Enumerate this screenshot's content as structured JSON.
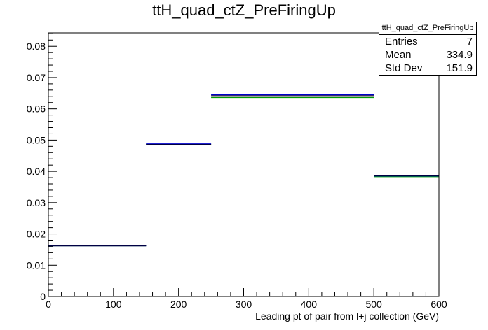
{
  "chart_data": {
    "type": "step",
    "title": "ttH_quad_ctZ_PreFiringUp",
    "xlabel": "Leading pt of pair from l+j collection (GeV)",
    "ylabel": "",
    "xlim": [
      0,
      600
    ],
    "ylim": [
      0,
      0.0843
    ],
    "x_ticks": [
      0,
      100,
      200,
      300,
      400,
      500,
      600
    ],
    "x_tick_labels": [
      "0",
      "100",
      "200",
      "300",
      "400",
      "500",
      "600"
    ],
    "y_ticks": [
      0,
      0.01,
      0.02,
      0.03,
      0.04,
      0.05,
      0.06,
      0.07,
      0.08
    ],
    "y_tick_labels": [
      "0",
      "0.01",
      "0.02",
      "0.03",
      "0.04",
      "0.05",
      "0.06",
      "0.07",
      "0.08"
    ],
    "grid": false,
    "bin_edges": [
      0,
      150,
      250,
      500,
      600
    ],
    "series": [
      {
        "color": "#000000",
        "values": [
          0.0162,
          0.0487,
          0.064,
          0.0384
        ]
      },
      {
        "color": "#00a000",
        "values": [
          0.0162,
          0.0487,
          0.0636,
          0.0383
        ]
      },
      {
        "color": "#0000cc",
        "values": [
          0.0162,
          0.0488,
          0.0645,
          0.0385
        ]
      },
      {
        "color": "#000044",
        "values": [
          0.0162,
          0.0486,
          0.0642,
          0.0386
        ]
      }
    ],
    "legend": {
      "title": "ttH_quad_ctZ_PreFiringUp",
      "entries": [
        {
          "label": "Entries",
          "value": "7"
        },
        {
          "label": "Mean",
          "value": "334.9"
        },
        {
          "label": "Std Dev",
          "value": "151.9"
        }
      ]
    }
  }
}
